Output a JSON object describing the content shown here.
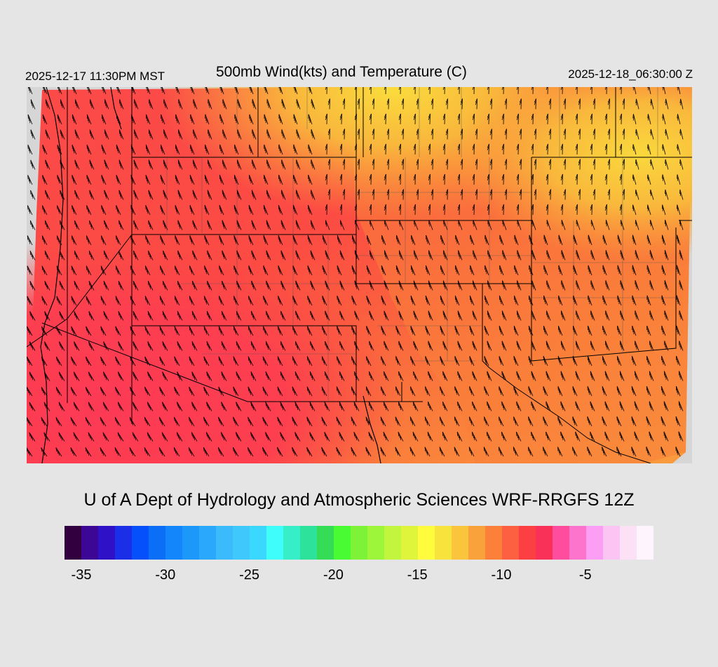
{
  "header": {
    "local_time": "2025-12-17 11:30PM MST",
    "title": "500mb Wind(kts) and Temperature (C)",
    "utc_time": "2025-12-18_06:30:00 Z"
  },
  "credit": "U of A Dept of Hydrology and Atmospheric Sciences WRF-RRGFS 12Z",
  "map": {
    "region": "Southwestern United States",
    "overlays": [
      "temperature shading",
      "wind barbs",
      "state boundaries",
      "coastline"
    ],
    "background_gray": "#d6d6d6"
  },
  "colorbar": {
    "colors": [
      "#33003f",
      "#3b0794",
      "#2f12c7",
      "#1b2ee8",
      "#0650fb",
      "#0b6ef7",
      "#1286fa",
      "#1c98fb",
      "#2aa8fb",
      "#3bbafc",
      "#3ec8fc",
      "#3bd8fd",
      "#3ffdfb",
      "#36efc9",
      "#2de39b",
      "#35dd56",
      "#48fb32",
      "#7ef236",
      "#9ef63b",
      "#c1f53e",
      "#dff53b",
      "#fffb3d",
      "#f8e23c",
      "#fac43c",
      "#f9a23c",
      "#fc803a",
      "#fd6040",
      "#fb3f42",
      "#f93057",
      "#fd4d9c",
      "#fd74cd",
      "#fc9ff4",
      "#fcc4f2",
      "#fce0f6",
      "#fef4fd"
    ],
    "tick_labels": [
      "-35",
      "-30",
      "-25",
      "-20",
      "-15",
      "-10",
      "-5"
    ]
  },
  "legend_palette": {
    "hot": "#fd3f4c",
    "warm": "#fb5b3c",
    "orange": "#fa853a",
    "amber": "#f9a23c",
    "yellow": "#fad83c"
  }
}
